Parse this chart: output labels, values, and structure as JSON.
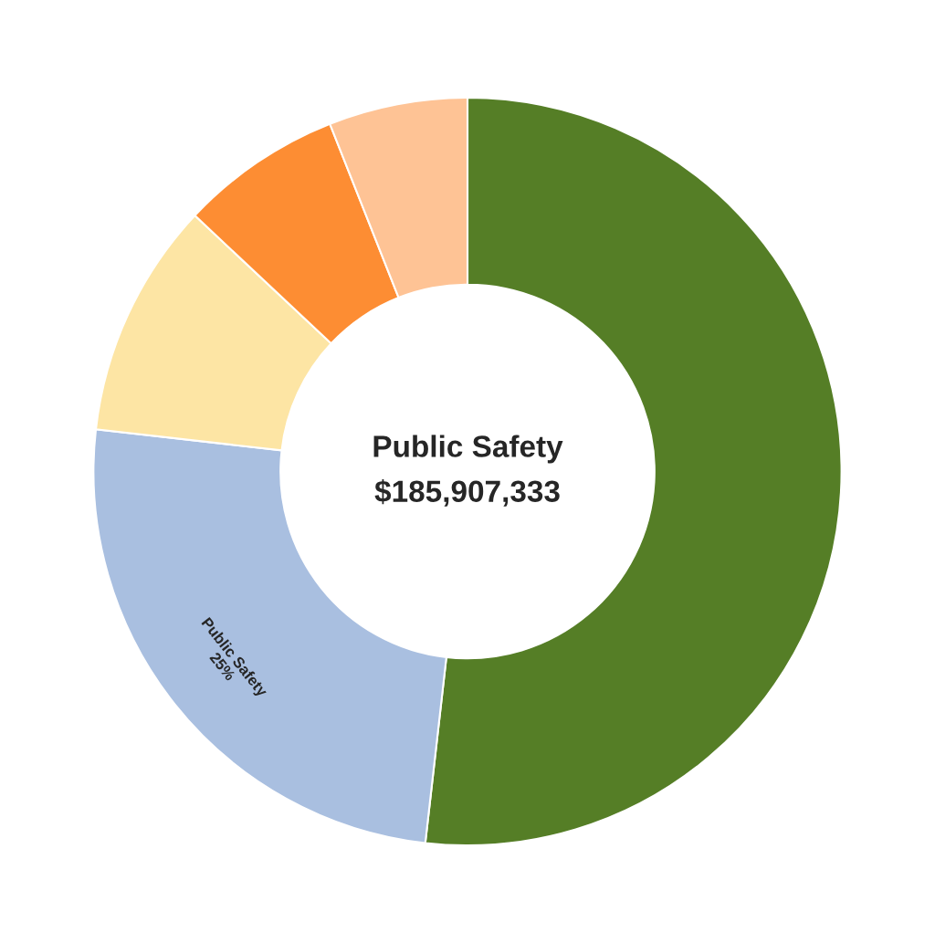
{
  "chart_data": {
    "type": "donut",
    "categories": [
      null,
      "Public Safety",
      null,
      null,
      null
    ],
    "values": [
      51.8,
      25,
      10.2,
      7.0,
      6.0
    ],
    "colors": [
      "#557e26",
      "#a9bfe0",
      "#fde5a4",
      "#fd8d33",
      "#fec395"
    ],
    "value_labels": [
      null,
      "25%",
      null,
      null,
      null
    ],
    "annotations": [
      "Public Safety",
      "$185,907,333"
    ],
    "legend": false
  }
}
